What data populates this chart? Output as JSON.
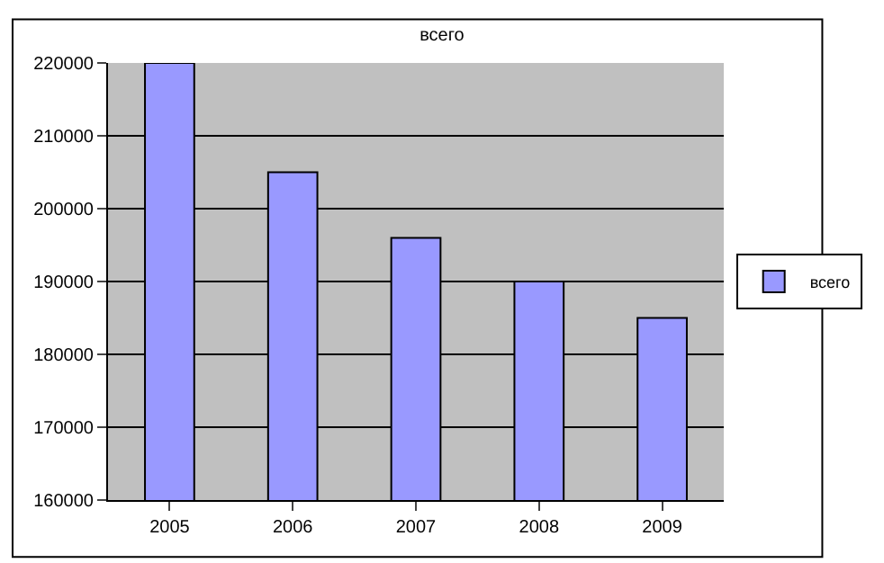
{
  "chart_data": {
    "type": "bar",
    "title": "всего",
    "categories": [
      "2005",
      "2006",
      "2007",
      "2008",
      "2009"
    ],
    "series": [
      {
        "name": "всего",
        "color": "#9999ff",
        "values": [
          220000,
          205000,
          196000,
          190000,
          185000
        ]
      }
    ],
    "ylim": [
      160000,
      220000
    ],
    "yticks": [
      160000,
      170000,
      180000,
      190000,
      200000,
      210000,
      220000
    ],
    "grid": "y",
    "legend": "right"
  }
}
